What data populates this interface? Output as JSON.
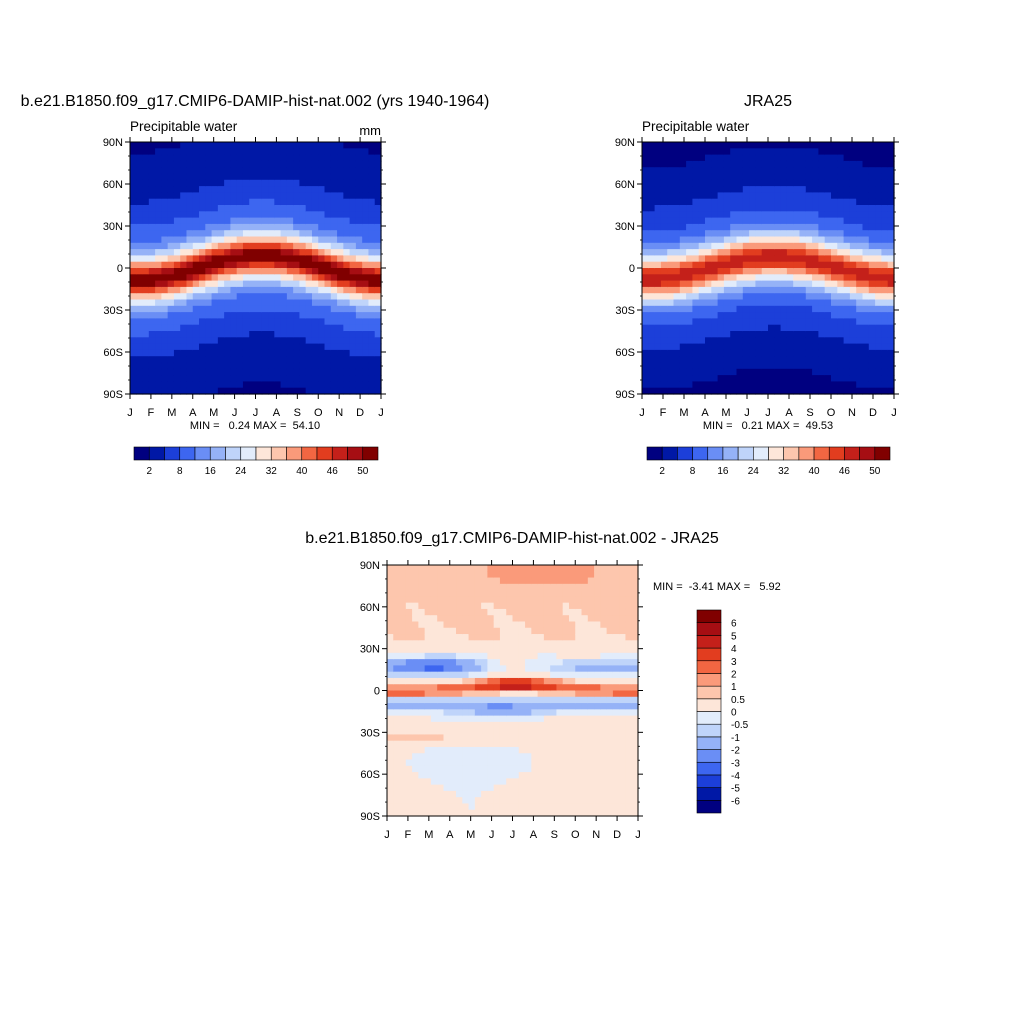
{
  "chart_data": [
    {
      "type": "heatmap",
      "id": "model",
      "title": "b.e21.B1850.f09_g17.CMIP6-DAMIP-hist-nat.002 (yrs 1940-1964)",
      "subtitle": "Precipitable water",
      "units": "mm",
      "x_ticks": [
        "J",
        "F",
        "M",
        "A",
        "M",
        "J",
        "J",
        "A",
        "S",
        "O",
        "N",
        "D",
        "J"
      ],
      "y_ticks": [
        "90N",
        "60N",
        "30N",
        "0",
        "30S",
        "60S",
        "90S"
      ],
      "stats_text": "MIN =   0.24 MAX =  54.10",
      "stats": {
        "min": 0.24,
        "max": 54.1
      },
      "colorbar": {
        "levels": [
          2,
          5,
          8,
          12,
          16,
          20,
          24,
          28,
          32,
          36,
          40,
          43,
          46,
          48,
          50
        ],
        "labels": [
          "2",
          "8",
          "16",
          "24",
          "32",
          "40",
          "46",
          "50"
        ],
        "colors": [
          "#000080",
          "#0018a6",
          "#1c3fd9",
          "#3d66f0",
          "#6a8ef5",
          "#95b2f7",
          "#bfd4fa",
          "#e2ecfb",
          "#fde6d9",
          "#fdc6ad",
          "#fa9a7a",
          "#f26642",
          "#e23d1f",
          "#c4201a",
          "#a60e13",
          "#800000"
        ]
      },
      "field": {
        "equator_max": 52,
        "itcz_seasonal_shift": 9,
        "pole_min": 1.5
      }
    },
    {
      "type": "heatmap",
      "id": "obs",
      "title": "JRA25",
      "subtitle": "Precipitable water",
      "x_ticks": [
        "J",
        "F",
        "M",
        "A",
        "M",
        "J",
        "J",
        "A",
        "S",
        "O",
        "N",
        "D",
        "J"
      ],
      "y_ticks": [
        "90N",
        "60N",
        "30N",
        "0",
        "30S",
        "60S",
        "90S"
      ],
      "stats_text": "MIN =   0.21 MAX =  49.53",
      "stats": {
        "min": 0.21,
        "max": 49.53
      },
      "colorbar": {
        "levels": [
          2,
          5,
          8,
          12,
          16,
          20,
          24,
          28,
          32,
          36,
          40,
          43,
          46,
          48,
          50
        ],
        "labels": [
          "2",
          "8",
          "16",
          "24",
          "32",
          "40",
          "46",
          "50"
        ],
        "colors": [
          "#000080",
          "#0018a6",
          "#1c3fd9",
          "#3d66f0",
          "#6a8ef5",
          "#95b2f7",
          "#bfd4fa",
          "#e2ecfb",
          "#fde6d9",
          "#fdc6ad",
          "#fa9a7a",
          "#f26642",
          "#e23d1f",
          "#c4201a",
          "#a60e13",
          "#800000"
        ]
      },
      "field": {
        "equator_max": 48,
        "itcz_seasonal_shift": 8,
        "pole_min": 1.0
      }
    },
    {
      "type": "heatmap",
      "id": "diff",
      "title": "b.e21.B1850.f09_g17.CMIP6-DAMIP-hist-nat.002 - JRA25",
      "x_ticks": [
        "J",
        "F",
        "M",
        "A",
        "M",
        "J",
        "J",
        "A",
        "S",
        "O",
        "N",
        "D",
        "J"
      ],
      "y_ticks": [
        "90N",
        "60N",
        "30N",
        "0",
        "30S",
        "60S",
        "90S"
      ],
      "stats_text": "MIN =  -3.41 MAX =   5.92",
      "stats": {
        "min": -3.41,
        "max": 5.92
      },
      "colorbar": {
        "levels": [
          -6,
          -5,
          -4,
          -3,
          -2,
          -1,
          -0.5,
          0,
          0.5,
          1,
          2,
          3,
          4,
          5,
          6
        ],
        "labels": [
          "-6",
          "-5",
          "-4",
          "-3",
          "-2",
          "-1",
          "-0.5",
          "0",
          "0.5",
          "1",
          "2",
          "3",
          "4",
          "5",
          "6"
        ],
        "colors": [
          "#000080",
          "#0018a6",
          "#1c3fd9",
          "#3d66f0",
          "#6a8ef5",
          "#95b2f7",
          "#bfd4fa",
          "#e2ecfb",
          "#fde6d9",
          "#fdc6ad",
          "#fa9a7a",
          "#f26642",
          "#e23d1f",
          "#c4201a",
          "#a60e13",
          "#800000"
        ]
      }
    }
  ]
}
